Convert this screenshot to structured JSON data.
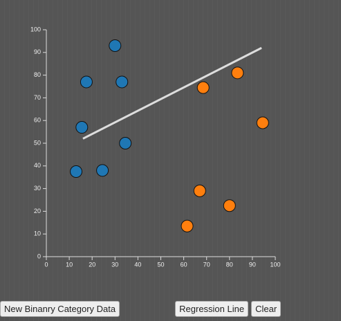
{
  "chart_data": {
    "type": "scatter",
    "xlim": [
      0,
      100
    ],
    "ylim": [
      0,
      100
    ],
    "xticks": [
      0,
      10,
      20,
      30,
      40,
      50,
      60,
      70,
      80,
      90,
      100
    ],
    "yticks": [
      0,
      10,
      20,
      30,
      40,
      50,
      60,
      70,
      80,
      90,
      100
    ],
    "series": [
      {
        "color": "#1f77b4",
        "x": [
          30,
          17.5,
          33,
          15.5,
          34.5,
          24.5,
          13
        ],
        "y": [
          93,
          77,
          77,
          57,
          50,
          38,
          37.5
        ]
      },
      {
        "color": "#ff7f0e",
        "x": [
          83.5,
          68.5,
          94.5,
          67,
          80,
          61.5
        ],
        "y": [
          81,
          74.5,
          59,
          29,
          22.5,
          13.5
        ]
      }
    ],
    "regression_line": {
      "color": "#dddddd",
      "x": [
        16,
        94
      ],
      "y": [
        52,
        92
      ]
    }
  },
  "buttons": [
    "New Binanry Category Data",
    "Regression Line",
    "Clear"
  ]
}
